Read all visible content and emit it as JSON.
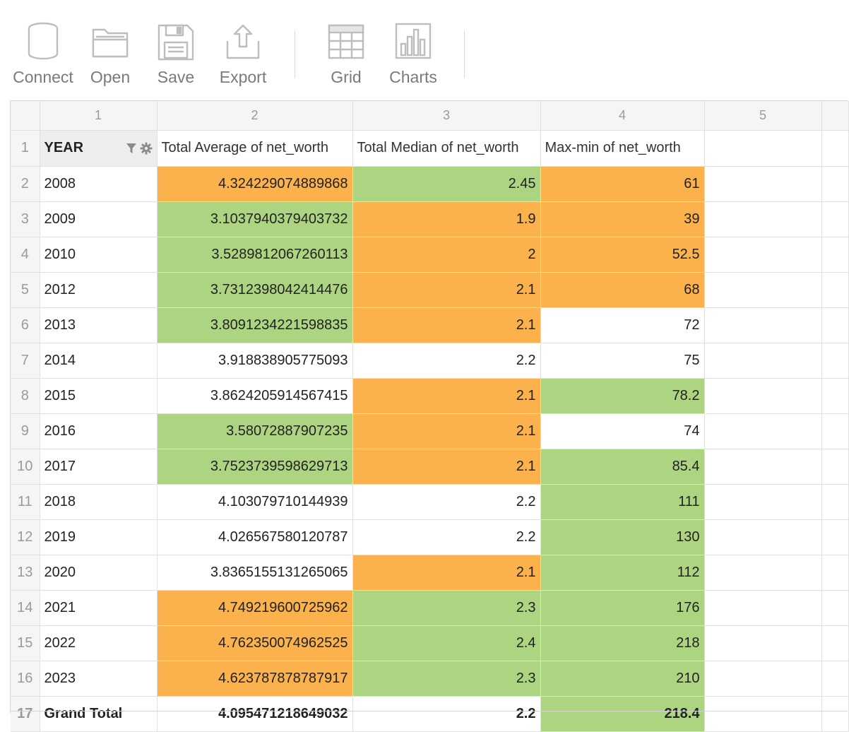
{
  "toolbar": {
    "items": [
      {
        "label": "Connect",
        "icon": "database-icon"
      },
      {
        "label": "Open",
        "icon": "folder-icon"
      },
      {
        "label": "Save",
        "icon": "floppy-disk-icon"
      },
      {
        "label": "Export",
        "icon": "export-upload-icon"
      },
      {
        "label": "Grid",
        "icon": "grid-table-icon"
      },
      {
        "label": "Charts",
        "icon": "bar-chart-icon"
      }
    ]
  },
  "colors": {
    "orange": "#fbb24d",
    "green": "#add581",
    "header_gray": "#f5f5f5"
  },
  "grid": {
    "column_numbers": [
      "1",
      "2",
      "3",
      "4",
      "5"
    ],
    "header_row_number": "1",
    "headers": {
      "year": "YEAR",
      "avg": "Total Average of net_worth",
      "median": "Total Median of net_worth",
      "maxmin": "Max-min of net_worth"
    },
    "rows": [
      {
        "n": "2",
        "year": "2008",
        "avg": "4.324229074889868",
        "avg_color": "orange",
        "median": "2.45",
        "median_color": "green",
        "maxmin": "61",
        "maxmin_color": "orange"
      },
      {
        "n": "3",
        "year": "2009",
        "avg": "3.1037940379403732",
        "avg_color": "green",
        "median": "1.9",
        "median_color": "orange",
        "maxmin": "39",
        "maxmin_color": "orange"
      },
      {
        "n": "4",
        "year": "2010",
        "avg": "3.5289812067260113",
        "avg_color": "green",
        "median": "2",
        "median_color": "orange",
        "maxmin": "52.5",
        "maxmin_color": "orange"
      },
      {
        "n": "5",
        "year": "2012",
        "avg": "3.7312398042414476",
        "avg_color": "green",
        "median": "2.1",
        "median_color": "orange",
        "maxmin": "68",
        "maxmin_color": "orange"
      },
      {
        "n": "6",
        "year": "2013",
        "avg": "3.8091234221598835",
        "avg_color": "green",
        "median": "2.1",
        "median_color": "orange",
        "maxmin": "72",
        "maxmin_color": "none"
      },
      {
        "n": "7",
        "year": "2014",
        "avg": "3.918838905775093",
        "avg_color": "none",
        "median": "2.2",
        "median_color": "none",
        "maxmin": "75",
        "maxmin_color": "none"
      },
      {
        "n": "8",
        "year": "2015",
        "avg": "3.8624205914567415",
        "avg_color": "none",
        "median": "2.1",
        "median_color": "orange",
        "maxmin": "78.2",
        "maxmin_color": "green"
      },
      {
        "n": "9",
        "year": "2016",
        "avg": "3.58072887907235",
        "avg_color": "green",
        "median": "2.1",
        "median_color": "orange",
        "maxmin": "74",
        "maxmin_color": "none"
      },
      {
        "n": "10",
        "year": "2017",
        "avg": "3.7523739598629713",
        "avg_color": "green",
        "median": "2.1",
        "median_color": "orange",
        "maxmin": "85.4",
        "maxmin_color": "green"
      },
      {
        "n": "11",
        "year": "2018",
        "avg": "4.103079710144939",
        "avg_color": "none",
        "median": "2.2",
        "median_color": "none",
        "maxmin": "111",
        "maxmin_color": "green"
      },
      {
        "n": "12",
        "year": "2019",
        "avg": "4.026567580120787",
        "avg_color": "none",
        "median": "2.2",
        "median_color": "none",
        "maxmin": "130",
        "maxmin_color": "green"
      },
      {
        "n": "13",
        "year": "2020",
        "avg": "3.8365155131265065",
        "avg_color": "none",
        "median": "2.1",
        "median_color": "orange",
        "maxmin": "112",
        "maxmin_color": "green"
      },
      {
        "n": "14",
        "year": "2021",
        "avg": "4.749219600725962",
        "avg_color": "orange",
        "median": "2.3",
        "median_color": "green",
        "maxmin": "176",
        "maxmin_color": "green"
      },
      {
        "n": "15",
        "year": "2022",
        "avg": "4.762350074962525",
        "avg_color": "orange",
        "median": "2.4",
        "median_color": "green",
        "maxmin": "218",
        "maxmin_color": "green"
      },
      {
        "n": "16",
        "year": "2023",
        "avg": "4.623787878787917",
        "avg_color": "orange",
        "median": "2.3",
        "median_color": "green",
        "maxmin": "210",
        "maxmin_color": "green"
      }
    ],
    "total_row": {
      "n": "17",
      "year": "Grand Total",
      "avg": "4.095471218649032",
      "median": "2.2",
      "maxmin": "218.4",
      "maxmin_color": "green"
    }
  }
}
